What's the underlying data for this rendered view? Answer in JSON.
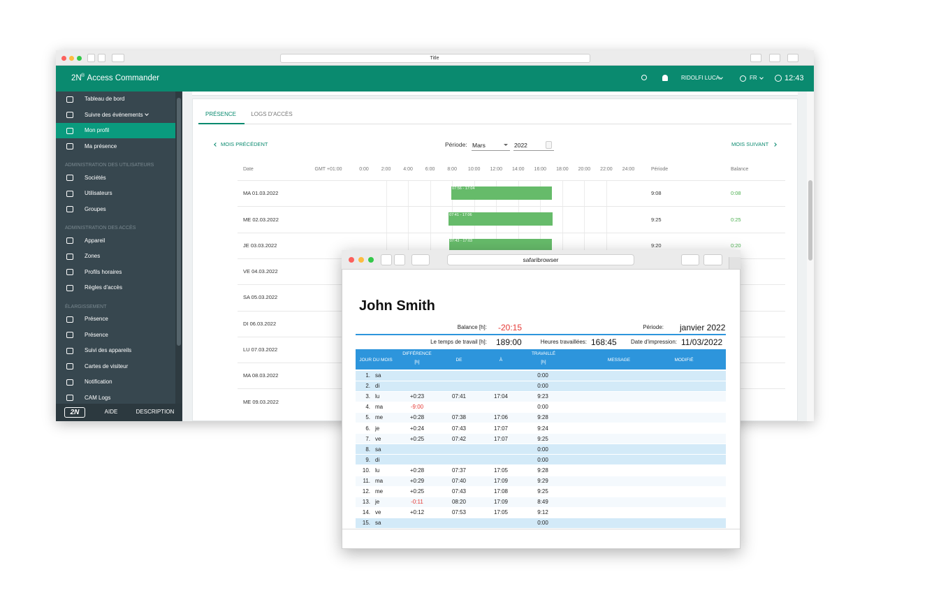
{
  "back_window": {
    "title": "Title"
  },
  "app_header": {
    "brand": "2N",
    "brand_mark": "®",
    "brand_rest": " Access Commander",
    "user": "RIDOLFI LUCA",
    "language": "FR",
    "clock": "12:43"
  },
  "sidebar": {
    "groups": [
      {
        "items": [
          {
            "label": "Tableau de bord"
          },
          {
            "label": "Suivre des événements",
            "expandable": true
          },
          {
            "label": "Mon profil",
            "active": true
          },
          {
            "label": "Ma présence"
          }
        ]
      },
      {
        "heading": "ADMINISTRATION DES UTILISATEURS",
        "items": [
          {
            "label": "Sociétés"
          },
          {
            "label": "Utilisateurs"
          },
          {
            "label": "Groupes"
          }
        ]
      },
      {
        "heading": "ADMINISTRATION DES ACCÈS",
        "items": [
          {
            "label": "Appareil"
          },
          {
            "label": "Zones"
          },
          {
            "label": "Profils horaires"
          },
          {
            "label": "Règles d'accès"
          }
        ]
      },
      {
        "heading": "ÉLARGISSEMENT",
        "items": [
          {
            "label": "Présence"
          },
          {
            "label": "Présence"
          },
          {
            "label": "Suivi des appareils"
          },
          {
            "label": "Cartes de visiteur"
          },
          {
            "label": "Notification"
          },
          {
            "label": "CAM Logs"
          }
        ]
      }
    ],
    "footer": {
      "logo": "2N",
      "links": [
        "AIDE",
        "DESCRIPTION"
      ]
    }
  },
  "attendance": {
    "tabs": [
      {
        "label": "PRÉSENCE",
        "active": true
      },
      {
        "label": "LOGS D'ACCÈS"
      }
    ],
    "previous": "MOIS PRÉCÉDENT",
    "next": "MOIS SUIVANT",
    "period_label": "Période:",
    "month": "Mars",
    "year": "2022",
    "headers": {
      "date": "Date",
      "timezone": "GMT +01:00",
      "hours": [
        "0:00",
        "2:00",
        "4:00",
        "6:00",
        "8:00",
        "10:00",
        "12:00",
        "14:00",
        "16:00",
        "18:00",
        "20:00",
        "22:00",
        "24:00"
      ],
      "period": "Période",
      "balance": "Balance"
    },
    "rows": [
      {
        "date": "MA 01.03.2022",
        "bar": "07:56 - 17:04",
        "period": "9:08",
        "balance": "0:08"
      },
      {
        "date": "ME 02.03.2022",
        "bar": "07:41 - 17:06",
        "period": "9:25",
        "balance": "0:25"
      },
      {
        "date": "JE 03.03.2022",
        "bar": "07:43 - 17:03",
        "period": "9:20",
        "balance": "0:20"
      },
      {
        "date": "VE 04.03.2022"
      },
      {
        "date": "SA 05.03.2022"
      },
      {
        "date": "DI 06.03.2022"
      },
      {
        "date": "LU 07.03.2022"
      },
      {
        "date": "MA 08.03.2022"
      },
      {
        "date": "ME 09.03.2022"
      }
    ]
  },
  "report_window": {
    "address": "safaribrowser",
    "name": "John Smith",
    "balance_label": "Balance [h]:",
    "balance": "-20:15",
    "period_label": "Période:",
    "period": "janvier 2022",
    "work_time_label": "Le temps de travail [h]:",
    "work_time": "189:00",
    "worked_label": "Heures travaillées:",
    "worked": "168:45",
    "print_date_label": "Date d'impression:",
    "print_date": "11/03/2022",
    "columns": [
      {
        "label": "JOUR DU MOIS"
      },
      {
        "label": "DIFFÉRENCE",
        "unit": "[h]"
      },
      {
        "label": "DE"
      },
      {
        "label": "À"
      },
      {
        "label": "TRAVAILLÉ",
        "unit": "[h]"
      },
      {
        "label": "MESSAGE"
      },
      {
        "label": "MODIFIÉ"
      }
    ],
    "rows": [
      {
        "num": "1.",
        "day": "sa",
        "worked": "0:00",
        "weekend": true
      },
      {
        "num": "2.",
        "day": "di",
        "worked": "0:00",
        "weekend": true
      },
      {
        "num": "3.",
        "day": "lu",
        "diff": "+0:23",
        "from": "07:41",
        "to": "17:04",
        "worked": "9:23"
      },
      {
        "num": "4.",
        "day": "ma",
        "diff": "-9:00",
        "worked": "0:00"
      },
      {
        "num": "5.",
        "day": "me",
        "diff": "+0:28",
        "from": "07:38",
        "to": "17:06",
        "worked": "9:28"
      },
      {
        "num": "6.",
        "day": "je",
        "diff": "+0:24",
        "from": "07:43",
        "to": "17:07",
        "worked": "9:24"
      },
      {
        "num": "7.",
        "day": "ve",
        "diff": "+0:25",
        "from": "07:42",
        "to": "17:07",
        "worked": "9:25"
      },
      {
        "num": "8.",
        "day": "sa",
        "worked": "0:00",
        "weekend": true
      },
      {
        "num": "9.",
        "day": "di",
        "worked": "0:00",
        "weekend": true
      },
      {
        "num": "10.",
        "day": "lu",
        "diff": "+0:28",
        "from": "07:37",
        "to": "17:05",
        "worked": "9:28"
      },
      {
        "num": "11.",
        "day": "ma",
        "diff": "+0:29",
        "from": "07:40",
        "to": "17:09",
        "worked": "9:29"
      },
      {
        "num": "12.",
        "day": "me",
        "diff": "+0:25",
        "from": "07:43",
        "to": "17:08",
        "worked": "9:25"
      },
      {
        "num": "13.",
        "day": "je",
        "diff": "-0:11",
        "from": "08:20",
        "to": "17:09",
        "worked": "8:49"
      },
      {
        "num": "14.",
        "day": "ve",
        "diff": "+0:12",
        "from": "07:53",
        "to": "17:05",
        "worked": "9:12"
      },
      {
        "num": "15.",
        "day": "sa",
        "worked": "0:00",
        "weekend": true
      }
    ]
  }
}
